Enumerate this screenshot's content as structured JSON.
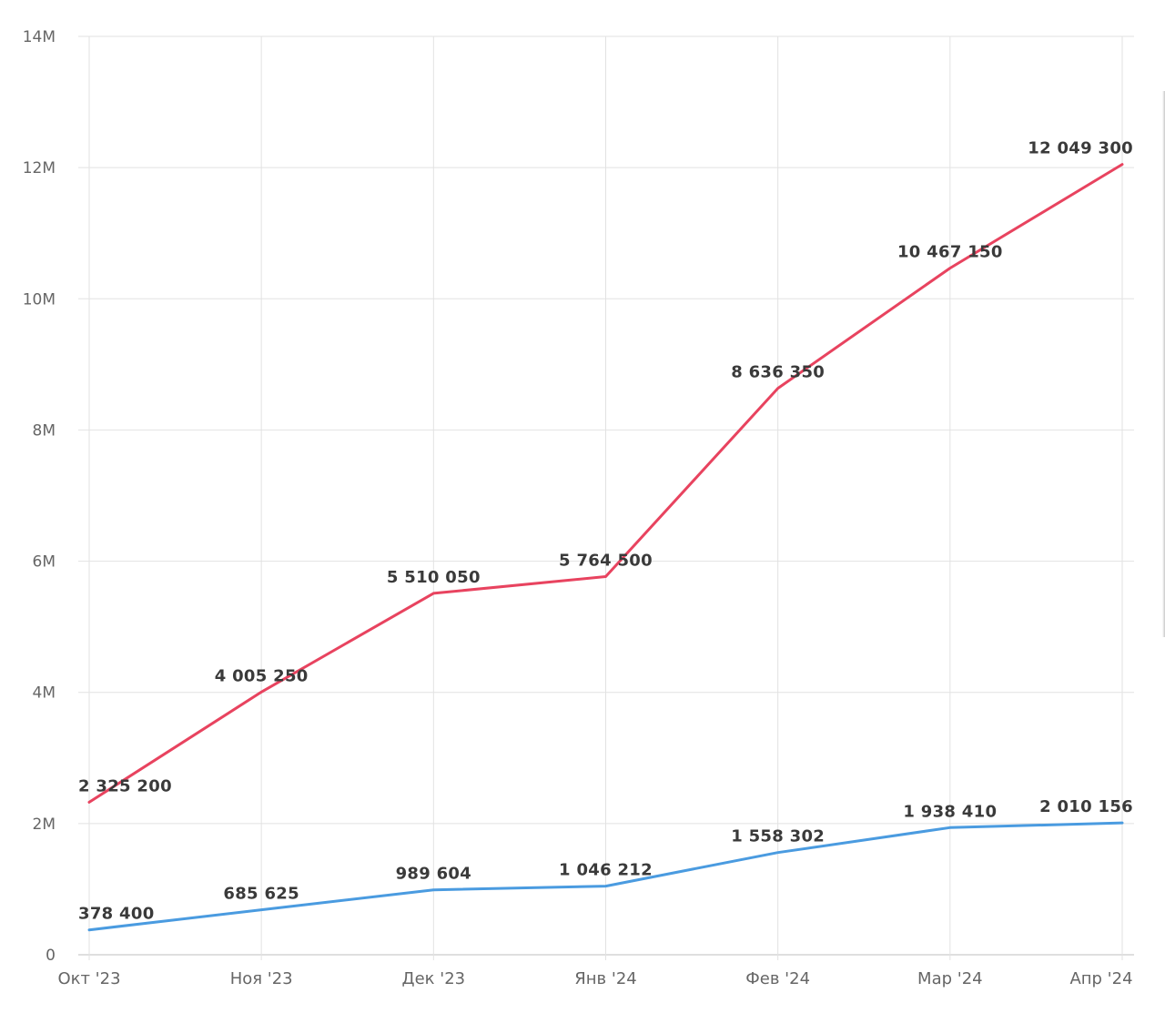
{
  "chart_data": {
    "type": "line",
    "categories": [
      "Окт '23",
      "Ноя '23",
      "Дек '23",
      "Янв '24",
      "Фев '24",
      "Мар '24",
      "Апр '24"
    ],
    "series": [
      {
        "color": "#e8435f",
        "values": [
          2325200,
          4005250,
          5510050,
          5764500,
          8636350,
          10467150,
          12049300
        ],
        "labels": [
          "2 325 200",
          "4 005 250",
          "5 510 050",
          "5 764 500",
          "8 636 350",
          "10 467 150",
          "12 049 300"
        ]
      },
      {
        "color": "#4a9be0",
        "values": [
          378400,
          685625,
          989604,
          1046212,
          1558302,
          1938410,
          2010156
        ],
        "labels": [
          "378 400",
          "685 625",
          "989 604",
          "1 046 212",
          "1 558 302",
          "1 938 410",
          "2 010 156"
        ]
      }
    ],
    "ylim": [
      0,
      14000000
    ],
    "yticks": [
      0,
      2000000,
      4000000,
      6000000,
      8000000,
      10000000,
      12000000,
      14000000
    ],
    "ytick_labels": [
      "0",
      "2M",
      "4M",
      "6M",
      "8M",
      "10M",
      "12M",
      "14M"
    ],
    "grid": true,
    "title": "",
    "xlabel": "",
    "ylabel": ""
  }
}
